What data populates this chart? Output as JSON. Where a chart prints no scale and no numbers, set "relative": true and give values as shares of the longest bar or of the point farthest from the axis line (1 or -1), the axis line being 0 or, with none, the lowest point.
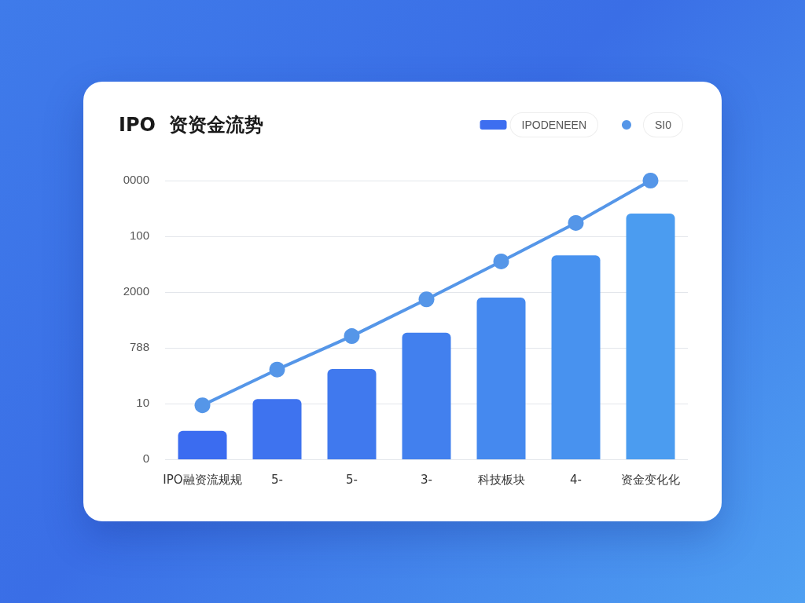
{
  "chart_data": {
    "type": "bar",
    "title": "IPO  资资金流势",
    "categories": [
      "IPO融资流规规",
      "5-",
      "5-",
      "3-",
      "科技板块",
      "4-",
      "资金变化化"
    ],
    "relative": true,
    "annotations": [
      "0",
      "10",
      "788",
      "2000",
      "100",
      "0000"
    ],
    "series": [
      {
        "name": "IPODENEEN",
        "color": "#3d6ef0",
        "colors": [
          "#3b6cf0",
          "#3e73ef",
          "#4079ee",
          "#4280ee",
          "#4589ef",
          "#4892ef",
          "#4b9cf0"
        ],
        "values": [
          0.102,
          0.216,
          0.324,
          0.454,
          0.58,
          0.732,
          0.882
        ]
      },
      {
        "name": "SI0",
        "type": "line",
        "color": "#5596e8",
        "values": [
          0.194,
          0.322,
          0.442,
          0.574,
          0.71,
          0.848,
          1
        ]
      }
    ],
    "grid": "y",
    "legend": "top right",
    "marker": "circle",
    "line_style": "solid"
  }
}
